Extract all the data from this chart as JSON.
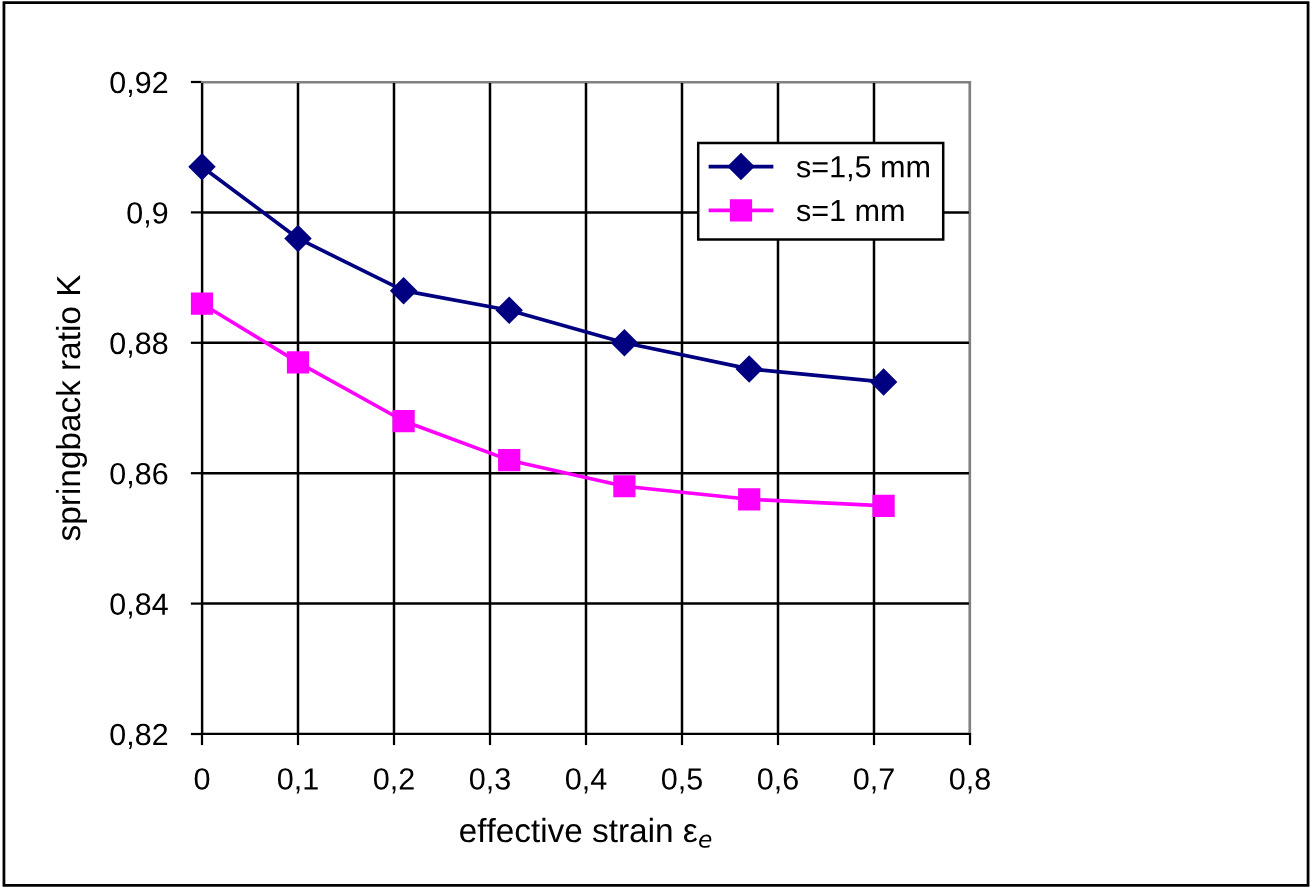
{
  "chart_data": {
    "type": "line",
    "xlabel": "effective strain ε$_{e}$",
    "ylabel": "springback ratio K",
    "x": [
      0,
      0.1,
      0.21,
      0.32,
      0.44,
      0.57,
      0.71
    ],
    "series": [
      {
        "name": "s=1,5 mm",
        "color": "#000080",
        "marker": "diamond",
        "values": [
          0.907,
          0.896,
          0.888,
          0.885,
          0.88,
          0.876,
          0.874
        ]
      },
      {
        "name": "s=1 mm",
        "color": "#ff00ff",
        "marker": "square",
        "values": [
          0.886,
          0.877,
          0.868,
          0.862,
          0.858,
          0.856,
          0.855
        ]
      }
    ],
    "xlim": [
      0,
      0.8
    ],
    "ylim": [
      0.82,
      0.92
    ],
    "xticks": [
      0,
      {
        "value": 0.1,
        "label": "0,1"
      },
      {
        "value": 0.2,
        "label": "0,2"
      },
      {
        "value": 0.3,
        "label": "0,3"
      },
      {
        "value": 0.4,
        "label": "0,4"
      },
      {
        "value": 0.5,
        "label": "0,5"
      },
      {
        "value": 0.6,
        "label": "0,6"
      },
      {
        "value": 0.7,
        "label": "0,7"
      },
      {
        "value": 0.8,
        "label": "0,8"
      }
    ],
    "yticks": [
      {
        "value": 0.82,
        "label": "0,82"
      },
      {
        "value": 0.84,
        "label": "0,84"
      },
      {
        "value": 0.86,
        "label": "0,86"
      },
      {
        "value": 0.88,
        "label": "0,88"
      },
      {
        "value": 0.9,
        "label": "0,9"
      },
      {
        "value": 0.92,
        "label": "0,92"
      }
    ],
    "grid": true,
    "legend": "top right",
    "line_style": "solid"
  }
}
